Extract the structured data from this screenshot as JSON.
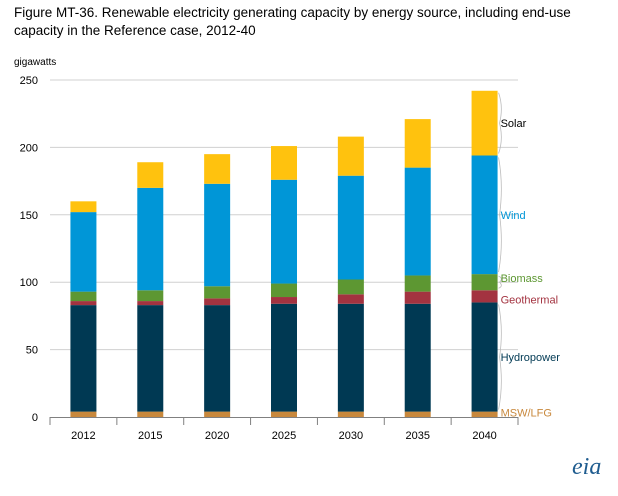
{
  "chart_data": {
    "type": "bar",
    "stacked": true,
    "title": "Figure MT-36. Renewable electricity generating capacity by energy source, including end-use capacity in the Reference case, 2012-40",
    "ylabel": "gigawatts",
    "xlabel": "",
    "categories": [
      "2012",
      "2015",
      "2020",
      "2025",
      "2030",
      "2035",
      "2040"
    ],
    "ylim": [
      0,
      250
    ],
    "yticks": [
      0,
      50,
      100,
      150,
      200,
      250
    ],
    "grid": true,
    "legend": "right-inline",
    "series": [
      {
        "name": "MSW/LFG",
        "color": "#c8883c",
        "values": [
          4,
          4,
          4,
          4,
          4,
          4,
          4
        ]
      },
      {
        "name": "Hydropower",
        "color": "#003953",
        "values": [
          79,
          79,
          79,
          80,
          80,
          80,
          81
        ]
      },
      {
        "name": "Geothermal",
        "color": "#a33340",
        "values": [
          3,
          3,
          5,
          5,
          7,
          9,
          9
        ]
      },
      {
        "name": "Biomass",
        "color": "#5d9732",
        "values": [
          7,
          8,
          9,
          10,
          11,
          12,
          12
        ]
      },
      {
        "name": "Wind",
        "color": "#0096d7",
        "values": [
          59,
          76,
          76,
          77,
          77,
          80,
          88
        ]
      },
      {
        "name": "Solar",
        "color": "#ffc20e",
        "values": [
          8,
          19,
          22,
          25,
          29,
          36,
          48
        ]
      }
    ],
    "label_colors": {
      "MSW/LFG": "#c8883c",
      "Hydropower": "#003953",
      "Geothermal": "#a33340",
      "Biomass": "#5d9732",
      "Wind": "#0096d7",
      "Solar": "#000000"
    }
  },
  "logo_text": "eia"
}
